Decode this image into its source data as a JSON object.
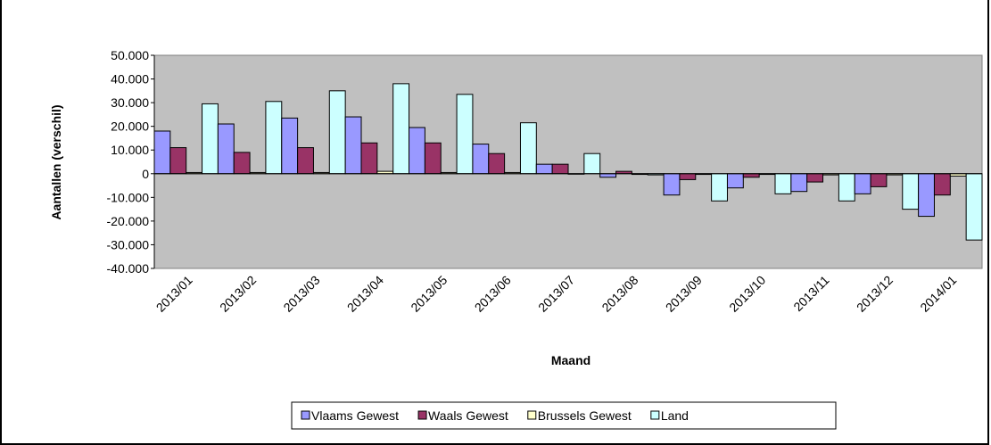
{
  "chart_data": {
    "type": "bar",
    "x_label": "Maand",
    "y_label": "Aantallen (verschil)",
    "categories": [
      "2013/01",
      "2013/02",
      "2013/03",
      "2013/04",
      "2013/05",
      "2013/06",
      "2013/07",
      "2013/08",
      "2013/09",
      "2013/10",
      "2013/11",
      "2013/12",
      "2014/01"
    ],
    "series": [
      {
        "name": "Vlaams Gewest",
        "color": "#9999ff",
        "values": [
          18000,
          21000,
          23500,
          24000,
          19500,
          12500,
          4000,
          -1500,
          -9000,
          -6000,
          -7500,
          -8500,
          -18000
        ]
      },
      {
        "name": "Waals Gewest",
        "color": "#993366",
        "values": [
          11000,
          9000,
          11000,
          13000,
          13000,
          8500,
          4000,
          1000,
          -2500,
          -1500,
          -3500,
          -5500,
          -9000
        ]
      },
      {
        "name": "Brussels Gewest",
        "color": "#ffffcc",
        "values": [
          500,
          500,
          500,
          1000,
          500,
          500,
          -200,
          -300,
          -300,
          -300,
          -500,
          -500,
          -1000
        ]
      },
      {
        "name": "Land",
        "color": "#ccffff",
        "values": [
          29500,
          30500,
          35000,
          38000,
          33500,
          21500,
          8500,
          -500,
          -11500,
          -8500,
          -11500,
          -15000,
          -28000
        ]
      }
    ],
    "ylim": [
      -40000,
      50000
    ],
    "yticks": [
      {
        "value": -40000,
        "label": "-40.000"
      },
      {
        "value": -30000,
        "label": "-30.000"
      },
      {
        "value": -20000,
        "label": "-20.000"
      },
      {
        "value": -10000,
        "label": "-10.000"
      },
      0,
      {
        "value": 10000,
        "label": "10.000"
      },
      {
        "value": 20000,
        "label": "20.000"
      },
      {
        "value": 30000,
        "label": "30.000"
      },
      {
        "value": 40000,
        "label": "40.000"
      },
      {
        "value": 50000,
        "label": "50.000"
      }
    ],
    "plot_background": "#c0c0c0",
    "legend": "bottom"
  }
}
